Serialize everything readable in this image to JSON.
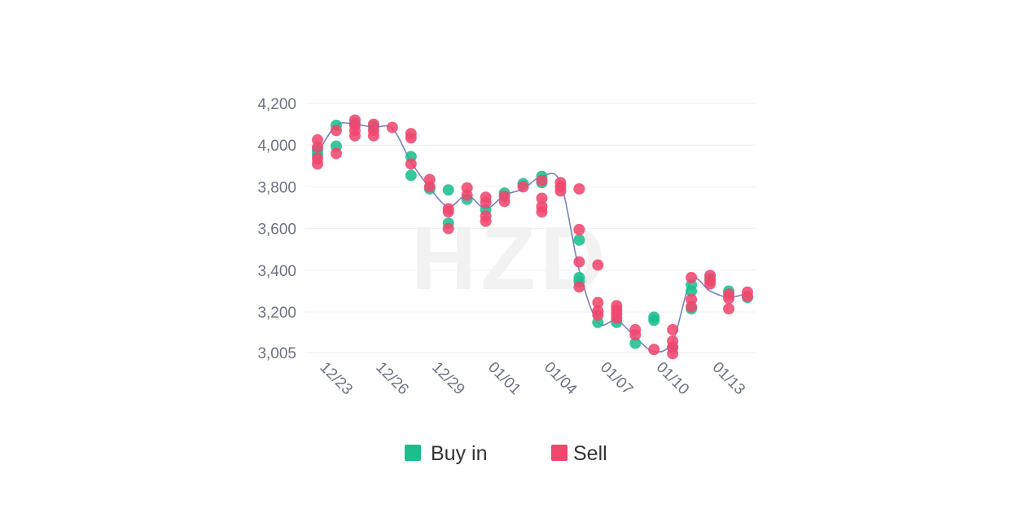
{
  "chart_data": {
    "type": "scatter",
    "title": "",
    "xlabel": "",
    "ylabel": "",
    "watermark": "HZD",
    "x_tick_labels": [
      "12/23",
      "12/26",
      "12/29",
      "01/01",
      "01/04",
      "01/07",
      "01/10",
      "01/13"
    ],
    "y_tick_labels": [
      "4,200",
      "4,000",
      "3,800",
      "3,600",
      "3,400",
      "3,200",
      "3,005"
    ],
    "y_tick_values": [
      4200,
      4000,
      3800,
      3600,
      3400,
      3200,
      3005
    ],
    "ylim": [
      3005,
      4200
    ],
    "x_day_count": 23,
    "grid": true,
    "legend_position": "bottom-center",
    "colors": {
      "buy": "#1bbf8f",
      "sell": "#f0476f",
      "line": "#7b7fc4",
      "grid": "#f1f1f1",
      "axis_text": "#6b7282"
    },
    "trend_line": [
      {
        "day": 0,
        "value": 3960
      },
      {
        "day": 1,
        "value": 4095
      },
      {
        "day": 2,
        "value": 4100
      },
      {
        "day": 3,
        "value": 4085
      },
      {
        "day": 4,
        "value": 4080
      },
      {
        "day": 5,
        "value": 3920
      },
      {
        "day": 6,
        "value": 3795
      },
      {
        "day": 7,
        "value": 3705
      },
      {
        "day": 8,
        "value": 3760
      },
      {
        "day": 9,
        "value": 3695
      },
      {
        "day": 10,
        "value": 3760
      },
      {
        "day": 11,
        "value": 3790
      },
      {
        "day": 12,
        "value": 3850
      },
      {
        "day": 13,
        "value": 3820
      },
      {
        "day": 14,
        "value": 3400
      },
      {
        "day": 15,
        "value": 3150
      },
      {
        "day": 16,
        "value": 3160
      },
      {
        "day": 17,
        "value": 3080
      },
      {
        "day": 18,
        "value": 3010
      },
      {
        "day": 19,
        "value": 3060
      },
      {
        "day": 20,
        "value": 3350
      },
      {
        "day": 21,
        "value": 3300
      },
      {
        "day": 22,
        "value": 3270
      },
      {
        "day": 23,
        "value": 3290
      }
    ],
    "series": [
      {
        "name": "Buy in",
        "color": "#1bbf8f",
        "points": [
          {
            "day": 0,
            "value": 3955
          },
          {
            "day": 0,
            "value": 3975
          },
          {
            "day": 1,
            "value": 4095
          },
          {
            "day": 1,
            "value": 3995
          },
          {
            "day": 2,
            "value": 4105
          },
          {
            "day": 3,
            "value": 4090
          },
          {
            "day": 5,
            "value": 3945
          },
          {
            "day": 5,
            "value": 3855
          },
          {
            "day": 6,
            "value": 3790
          },
          {
            "day": 7,
            "value": 3785
          },
          {
            "day": 7,
            "value": 3625
          },
          {
            "day": 8,
            "value": 3740
          },
          {
            "day": 9,
            "value": 3690
          },
          {
            "day": 10,
            "value": 3770
          },
          {
            "day": 11,
            "value": 3815
          },
          {
            "day": 12,
            "value": 3850
          },
          {
            "day": 12,
            "value": 3820
          },
          {
            "day": 14,
            "value": 3545
          },
          {
            "day": 14,
            "value": 3365
          },
          {
            "day": 14,
            "value": 3345
          },
          {
            "day": 15,
            "value": 3150
          },
          {
            "day": 16,
            "value": 3150
          },
          {
            "day": 17,
            "value": 3050
          },
          {
            "day": 18,
            "value": 3175
          },
          {
            "day": 18,
            "value": 3160
          },
          {
            "day": 19,
            "value": 3030
          },
          {
            "day": 20,
            "value": 3330
          },
          {
            "day": 20,
            "value": 3300
          },
          {
            "day": 20,
            "value": 3215
          },
          {
            "day": 21,
            "value": 3360
          },
          {
            "day": 22,
            "value": 3300
          },
          {
            "day": 23,
            "value": 3270
          }
        ]
      },
      {
        "name": "Sell",
        "color": "#f0476f",
        "points": [
          {
            "day": 0,
            "value": 4025
          },
          {
            "day": 0,
            "value": 3990
          },
          {
            "day": 0,
            "value": 3935
          },
          {
            "day": 0,
            "value": 3910
          },
          {
            "day": 1,
            "value": 4070
          },
          {
            "day": 1,
            "value": 3960
          },
          {
            "day": 2,
            "value": 4120
          },
          {
            "day": 2,
            "value": 4095
          },
          {
            "day": 2,
            "value": 4070
          },
          {
            "day": 2,
            "value": 4045
          },
          {
            "day": 3,
            "value": 4100
          },
          {
            "day": 3,
            "value": 4070
          },
          {
            "day": 3,
            "value": 4045
          },
          {
            "day": 4,
            "value": 4085
          },
          {
            "day": 5,
            "value": 4055
          },
          {
            "day": 5,
            "value": 4035
          },
          {
            "day": 5,
            "value": 3910
          },
          {
            "day": 6,
            "value": 3835
          },
          {
            "day": 6,
            "value": 3800
          },
          {
            "day": 7,
            "value": 3695
          },
          {
            "day": 7,
            "value": 3680
          },
          {
            "day": 7,
            "value": 3600
          },
          {
            "day": 8,
            "value": 3795
          },
          {
            "day": 8,
            "value": 3760
          },
          {
            "day": 9,
            "value": 3750
          },
          {
            "day": 9,
            "value": 3725
          },
          {
            "day": 9,
            "value": 3660
          },
          {
            "day": 9,
            "value": 3635
          },
          {
            "day": 10,
            "value": 3755
          },
          {
            "day": 10,
            "value": 3730
          },
          {
            "day": 11,
            "value": 3800
          },
          {
            "day": 12,
            "value": 3830
          },
          {
            "day": 12,
            "value": 3745
          },
          {
            "day": 12,
            "value": 3705
          },
          {
            "day": 12,
            "value": 3680
          },
          {
            "day": 13,
            "value": 3820
          },
          {
            "day": 13,
            "value": 3800
          },
          {
            "day": 13,
            "value": 3780
          },
          {
            "day": 14,
            "value": 3790
          },
          {
            "day": 14,
            "value": 3595
          },
          {
            "day": 14,
            "value": 3440
          },
          {
            "day": 14,
            "value": 3320
          },
          {
            "day": 15,
            "value": 3425
          },
          {
            "day": 15,
            "value": 3245
          },
          {
            "day": 15,
            "value": 3205
          },
          {
            "day": 15,
            "value": 3185
          },
          {
            "day": 16,
            "value": 3230
          },
          {
            "day": 16,
            "value": 3210
          },
          {
            "day": 16,
            "value": 3190
          },
          {
            "day": 16,
            "value": 3170
          },
          {
            "day": 17,
            "value": 3115
          },
          {
            "day": 17,
            "value": 3090
          },
          {
            "day": 18,
            "value": 3020
          },
          {
            "day": 19,
            "value": 3115
          },
          {
            "day": 19,
            "value": 3060
          },
          {
            "day": 19,
            "value": 3030
          },
          {
            "day": 19,
            "value": 3000
          },
          {
            "day": 20,
            "value": 3365
          },
          {
            "day": 20,
            "value": 3260
          },
          {
            "day": 20,
            "value": 3225
          },
          {
            "day": 21,
            "value": 3375
          },
          {
            "day": 21,
            "value": 3350
          },
          {
            "day": 21,
            "value": 3335
          },
          {
            "day": 22,
            "value": 3285
          },
          {
            "day": 22,
            "value": 3265
          },
          {
            "day": 22,
            "value": 3215
          },
          {
            "day": 23,
            "value": 3295
          },
          {
            "day": 23,
            "value": 3275
          }
        ]
      }
    ]
  },
  "legend": [
    {
      "label": "Buy in",
      "color": "#1bbf8f"
    },
    {
      "label": "Sell",
      "color": "#f0476f"
    }
  ]
}
